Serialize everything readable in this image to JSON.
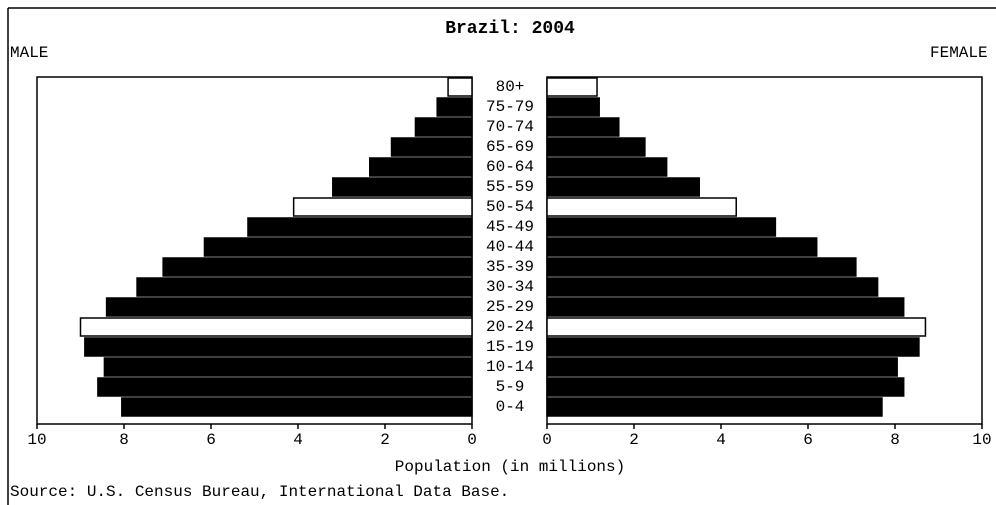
{
  "chart_data": {
    "type": "pyramid",
    "title": "Brazil: 2004",
    "categories": [
      "0-4",
      "5-9",
      "10-14",
      "15-19",
      "20-24",
      "25-29",
      "30-34",
      "35-39",
      "40-44",
      "45-49",
      "50-54",
      "55-59",
      "60-64",
      "65-69",
      "70-74",
      "75-79",
      "80+"
    ],
    "series": [
      {
        "name": "MALE",
        "color": "#000000",
        "colors": [
          "#000000",
          "#000000",
          "#000000",
          "#000000",
          "#ffffff",
          "#000000",
          "#000000",
          "#000000",
          "#000000",
          "#000000",
          "#ffffff",
          "#000000",
          "#000000",
          "#000000",
          "#000000",
          "#000000",
          "#ffffff"
        ],
        "values": [
          8.05,
          8.6,
          8.45,
          8.9,
          9.0,
          8.4,
          7.7,
          7.1,
          6.15,
          5.15,
          4.1,
          3.2,
          2.35,
          1.85,
          1.3,
          0.8,
          0.55
        ]
      },
      {
        "name": "FEMALE",
        "color": "#000000",
        "colors": [
          "#000000",
          "#000000",
          "#000000",
          "#000000",
          "#ffffff",
          "#000000",
          "#000000",
          "#000000",
          "#000000",
          "#000000",
          "#ffffff",
          "#000000",
          "#000000",
          "#000000",
          "#000000",
          "#000000",
          "#ffffff"
        ],
        "values": [
          7.7,
          8.2,
          8.05,
          8.55,
          8.7,
          8.2,
          7.6,
          7.1,
          6.2,
          5.25,
          4.35,
          3.5,
          2.75,
          2.25,
          1.65,
          1.2,
          1.15
        ]
      }
    ],
    "xlim": [
      0,
      10
    ],
    "xticks": [
      0,
      2,
      4,
      6,
      8,
      10
    ],
    "x_label": "Population (in millions)",
    "source": "Source: U.S. Census Bureau, International Data Base."
  }
}
